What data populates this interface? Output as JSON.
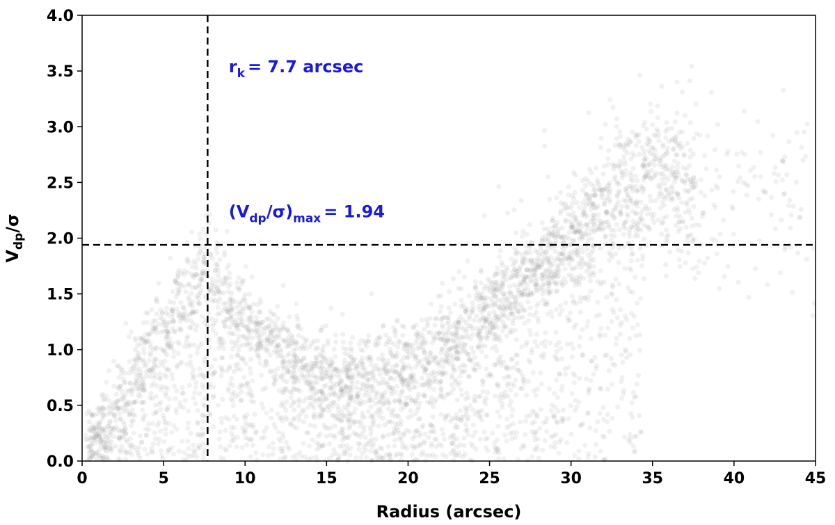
{
  "chart_data": {
    "type": "scatter",
    "title": "",
    "xlabel": "Radius (arcsec)",
    "ylabel_main": "V",
    "ylabel_sub": "dp",
    "ylabel_tail": "/σ",
    "xlim": [
      0,
      45
    ],
    "ylim": [
      0,
      4.0
    ],
    "xticks": [
      "0",
      "5",
      "10",
      "15",
      "20",
      "25",
      "30",
      "35",
      "40",
      "45"
    ],
    "yticks": [
      "0.0",
      "0.5",
      "1.0",
      "1.5",
      "2.0",
      "2.5",
      "3.0",
      "3.5",
      "4.0"
    ],
    "grid": false,
    "legend": "none",
    "point_color": "#8a8a8a",
    "point_opacity": 0.12,
    "annotation_color": "#1a1adc",
    "scatter_trend": {
      "description_points": [
        {
          "x": 0.0,
          "y": 0.15
        },
        {
          "x": 2.0,
          "y": 0.55
        },
        {
          "x": 4.0,
          "y": 0.95
        },
        {
          "x": 6.0,
          "y": 1.45
        },
        {
          "x": 7.7,
          "y": 1.85
        },
        {
          "x": 9.0,
          "y": 1.45
        },
        {
          "x": 11.0,
          "y": 1.15
        },
        {
          "x": 14.0,
          "y": 0.85
        },
        {
          "x": 17.0,
          "y": 0.8
        },
        {
          "x": 20.0,
          "y": 0.9
        },
        {
          "x": 23.0,
          "y": 1.15
        },
        {
          "x": 26.0,
          "y": 1.5
        },
        {
          "x": 29.0,
          "y": 1.9
        },
        {
          "x": 32.0,
          "y": 2.3
        },
        {
          "x": 35.0,
          "y": 2.6
        },
        {
          "x": 38.0,
          "y": 2.4
        }
      ]
    },
    "reference_lines": {
      "vertical_x": 7.7,
      "horizontal_y": 1.94
    },
    "annotations": {
      "rk_main": "r",
      "rk_sub": "k",
      "rk_value": "= 7.7 arcsec",
      "vmax_open": "(V",
      "vmax_sub1": "dp",
      "vmax_mid": "/σ)",
      "vmax_sub2": "max",
      "vmax_value": "= 1.94"
    }
  }
}
